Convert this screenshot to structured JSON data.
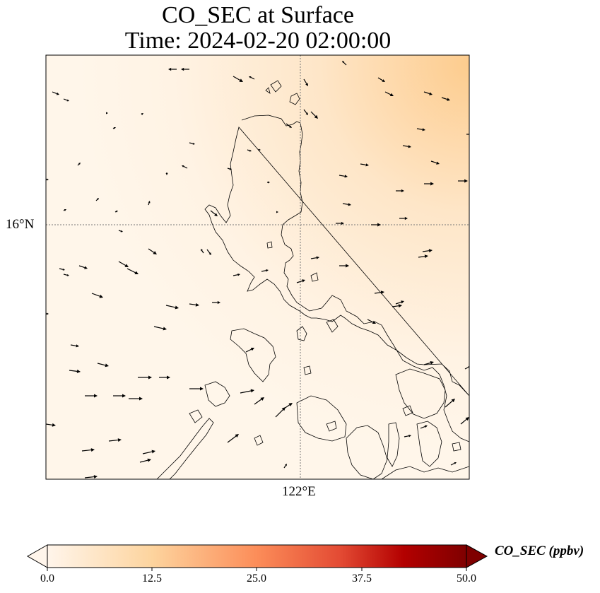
{
  "title_line1": "CO_SEC at Surface",
  "title_line2": "Time: 2024-02-20 02:00:00",
  "map": {
    "lat_label": "16°N",
    "lon_label": "122°E",
    "field_colors": {
      "low": "#fff5e8",
      "high": "#fdd19d"
    }
  },
  "colorbar": {
    "label": "CO_SEC (ppbv)",
    "ticks": [
      "0.0",
      "12.5",
      "25.0",
      "37.5",
      "50.0"
    ],
    "range": [
      0,
      50
    ],
    "extend": "both",
    "colormap": [
      "#fff5eb",
      "#fdd49e",
      "#fc8d59",
      "#d7301f",
      "#b30000",
      "#7f0000"
    ]
  }
}
